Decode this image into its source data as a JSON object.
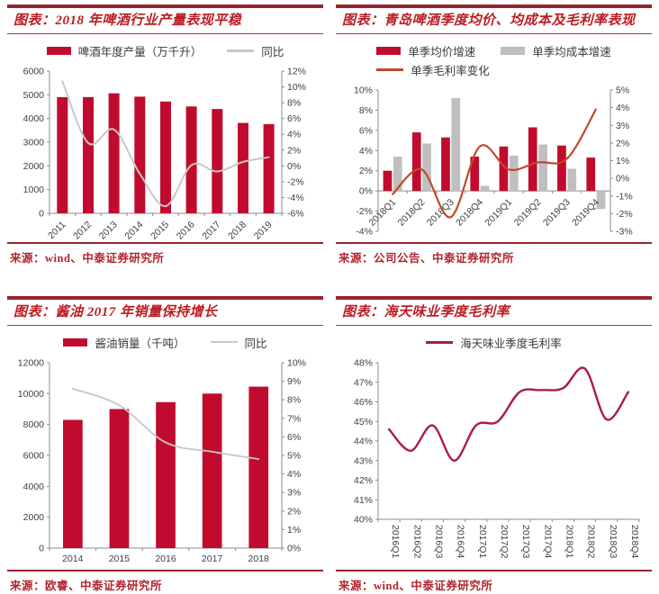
{
  "theme": {
    "rule-dark": "#96242f",
    "rule-mid": "#a8394a",
    "title-red": "#bc1c22",
    "source-red": "#b2252e",
    "axis-line": "#8c8c8c",
    "axis-text": "#404040",
    "bar-red": "#c10b2e",
    "bar-gray": "#bfbfbf",
    "line-gray": "#c8c8c8",
    "line-orange": "#c0492b",
    "line-maroon": "#a81c44"
  },
  "panels": [
    {
      "name": "beer-industry-production",
      "title": "图表：2018 年啤酒行业产量表现平稳",
      "source": "来源：wind、中泰证券研究所",
      "chart_data": {
        "type": "bar",
        "title": "2018 年啤酒行业产量表现平稳",
        "categories": [
          "2011",
          "2012",
          "2013",
          "2014",
          "2015",
          "2016",
          "2017",
          "2018",
          "2019"
        ],
        "series": [
          {
            "name": "啤酒年度产量（万千升）",
            "type": "bar",
            "axis": "left",
            "color": "#c10b2e",
            "values": [
              4899,
              4902,
              5062,
              4922,
              4716,
              4506,
              4402,
              3812,
              3765
            ]
          },
          {
            "name": "同比",
            "type": "line",
            "axis": "right",
            "color": "#c8c8c8",
            "width": 2,
            "values": [
              10.7,
              2.9,
              4.6,
              -1.0,
              -5.1,
              0.1,
              -0.7,
              0.5,
              1.1
            ]
          }
        ],
        "left_axis": {
          "min": 0,
          "max": 6000,
          "step": 1000,
          "format": "number"
        },
        "right_axis": {
          "min": -6,
          "max": 12,
          "step": 2,
          "format": "percent"
        },
        "x_rotate": 45,
        "x_label_space": 32,
        "grid": false,
        "legend_position": "top",
        "legend_rows": [
          [
            {
              "label": "啤酒年度产量（万千升）",
              "marker": "bar",
              "color": "#c10b2e"
            },
            {
              "label": "同比",
              "marker": "line",
              "color": "#c8c8c8"
            }
          ]
        ]
      }
    },
    {
      "name": "tsingtao-quarterly-price-cost-margin",
      "title": "图表：青岛啤酒季度均价、均成本及毛利率表现",
      "source": "来源：公司公告、中泰证券研究所",
      "chart_data": {
        "type": "bar",
        "title": "青岛啤酒季度均价、均成本及毛利率表现",
        "categories": [
          "2018Q1",
          "2018Q2",
          "2018Q3",
          "2018Q4",
          "2019Q1",
          "2019Q2",
          "2019Q3",
          "2019Q4"
        ],
        "series": [
          {
            "name": "单季均价增速",
            "type": "bar",
            "axis": "left",
            "color": "#c10b2e",
            "values": [
              2.0,
              5.8,
              5.3,
              3.4,
              4.4,
              6.3,
              4.5,
              3.3
            ]
          },
          {
            "name": "单季均成本增速",
            "type": "bar",
            "axis": "left",
            "color": "#bfbfbf",
            "values": [
              3.4,
              4.7,
              9.2,
              0.5,
              3.5,
              4.6,
              2.2,
              -1.8
            ]
          },
          {
            "name": "单季毛利率变化",
            "type": "line",
            "axis": "right",
            "color": "#c0492b",
            "width": 2.2,
            "values": [
              -0.9,
              0.5,
              -2.2,
              1.8,
              0.5,
              0.9,
              1.1,
              3.9
            ]
          }
        ],
        "left_axis": {
          "min": -4,
          "max": 10,
          "step": 2,
          "format": "percent"
        },
        "right_axis": {
          "min": -3,
          "max": 5,
          "step": 1,
          "format": "percent"
        },
        "x_rotate": 45,
        "x_label_space": 8,
        "grid": false,
        "legend_position": "top",
        "legend_rows": [
          [
            {
              "label": "单季均价增速",
              "marker": "bar",
              "color": "#c10b2e"
            },
            {
              "label": "单季均成本增速",
              "marker": "bar",
              "color": "#bfbfbf"
            }
          ],
          [
            {
              "label": "单季毛利率变化",
              "marker": "line",
              "color": "#c0492b"
            }
          ]
        ]
      }
    },
    {
      "name": "soy-sauce-sales",
      "title": "图表：酱油 2017 年销量保持增长",
      "source": "来源：欧睿、中泰证券研究所",
      "chart_data": {
        "type": "bar",
        "title": "酱油 2017 年销量保持增长",
        "categories": [
          "2014",
          "2015",
          "2016",
          "2017",
          "2018"
        ],
        "series": [
          {
            "name": "酱油销量（千吨）",
            "type": "bar",
            "axis": "left",
            "color": "#c10b2e",
            "values": [
              8300,
              9000,
              9450,
              10000,
              10450
            ]
          },
          {
            "name": "同比",
            "type": "line",
            "axis": "right",
            "color": "#c8c8c8",
            "width": 1.8,
            "values": [
              8.6,
              7.7,
              5.7,
              5.2,
              4.8
            ]
          }
        ],
        "left_axis": {
          "min": 0,
          "max": 12000,
          "step": 2000,
          "format": "number"
        },
        "right_axis": {
          "min": 0,
          "max": 10,
          "step": 1,
          "format": "percent"
        },
        "x_rotate": 0,
        "x_label_space": 24,
        "grid": false,
        "legend_position": "top",
        "legend_rows": [
          [
            {
              "label": "酱油销量（千吨）",
              "marker": "bar",
              "color": "#c10b2e"
            },
            {
              "label": "同比",
              "marker": "line",
              "color": "#c8c8c8"
            }
          ]
        ]
      }
    },
    {
      "name": "haitian-quarterly-gross-margin",
      "title": "图表：海天味业季度毛利率",
      "source": "来源：wind、中泰证券研究所",
      "chart_data": {
        "type": "line",
        "title": "海天味业季度毛利率",
        "categories": [
          "2016Q1",
          "2016Q2",
          "2016Q3",
          "2016Q4",
          "2017Q1",
          "2017Q2",
          "2017Q3",
          "2017Q4",
          "2018Q1",
          "2018Q2",
          "2018Q3",
          "2018Q4"
        ],
        "series": [
          {
            "name": "海天味业季度毛利率",
            "type": "line",
            "axis": "left",
            "color": "#a81c44",
            "width": 2.4,
            "values": [
              44.6,
              43.5,
              44.8,
              43.0,
              44.8,
              45.0,
              46.5,
              46.6,
              46.7,
              47.7,
              45.1,
              46.5
            ]
          }
        ],
        "left_axis": {
          "min": 40,
          "max": 48,
          "step": 1,
          "format": "percent"
        },
        "x_rotate": 90,
        "x_label_space": 56,
        "grid": false,
        "legend_position": "top",
        "legend_rows": [
          [
            {
              "label": "海天味业季度毛利率",
              "marker": "line",
              "color": "#a81c44"
            }
          ]
        ]
      }
    }
  ]
}
